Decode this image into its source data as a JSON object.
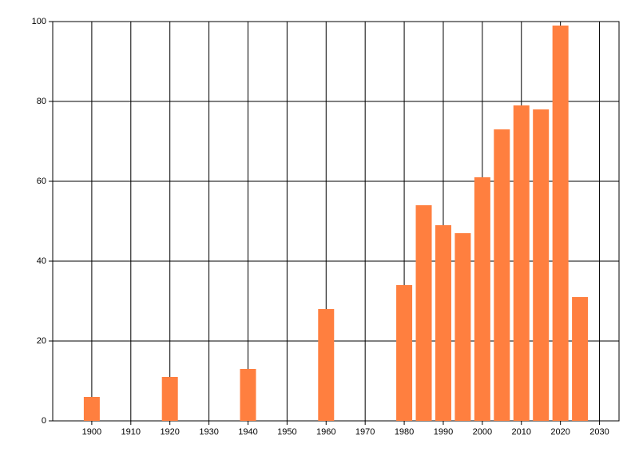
{
  "chart_data": {
    "type": "bar",
    "x": [
      1900,
      1920,
      1940,
      1960,
      1980,
      1985,
      1990,
      1995,
      2000,
      2005,
      2010,
      2015,
      2020,
      2025
    ],
    "values": [
      6,
      11,
      13,
      28,
      34,
      54,
      49,
      47,
      61,
      73,
      79,
      78,
      99,
      31
    ],
    "color": "#ff7f3f",
    "xlim": [
      1890,
      2035
    ],
    "xticks": [
      1900,
      1910,
      1920,
      1930,
      1940,
      1950,
      1960,
      1970,
      1980,
      1990,
      2000,
      2010,
      2020,
      2030
    ],
    "ylim": [
      0,
      100
    ],
    "yticks": [
      0,
      20,
      40,
      60,
      80,
      100
    ],
    "grid": true
  }
}
